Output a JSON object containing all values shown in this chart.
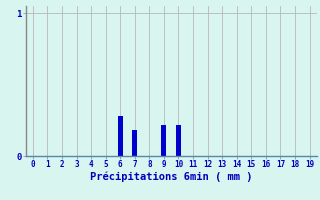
{
  "categories": [
    0,
    1,
    2,
    3,
    4,
    5,
    6,
    7,
    8,
    9,
    10,
    11,
    12,
    13,
    14,
    15,
    16,
    17,
    18,
    19
  ],
  "values": [
    0,
    0,
    0,
    0,
    0,
    0,
    0.28,
    0.18,
    0,
    0.22,
    0.22,
    0,
    0,
    0,
    0,
    0,
    0,
    0,
    0,
    0
  ],
  "bar_color": "#0000cc",
  "background_color": "#d8f5f0",
  "grid_color": "#b8b8b8",
  "xlabel": "Précipitations 6min ( mm )",
  "xlabel_color": "#0000bb",
  "tick_color": "#0000bb",
  "ytick_labels": [
    "0",
    "1"
  ],
  "ytick_vals": [
    0,
    1
  ],
  "ylim": [
    0,
    1.05
  ],
  "xlim": [
    -0.5,
    19.5
  ],
  "bar_width": 0.35,
  "left_spine_color": "#888888",
  "bottom_spine_color": "#5588aa"
}
